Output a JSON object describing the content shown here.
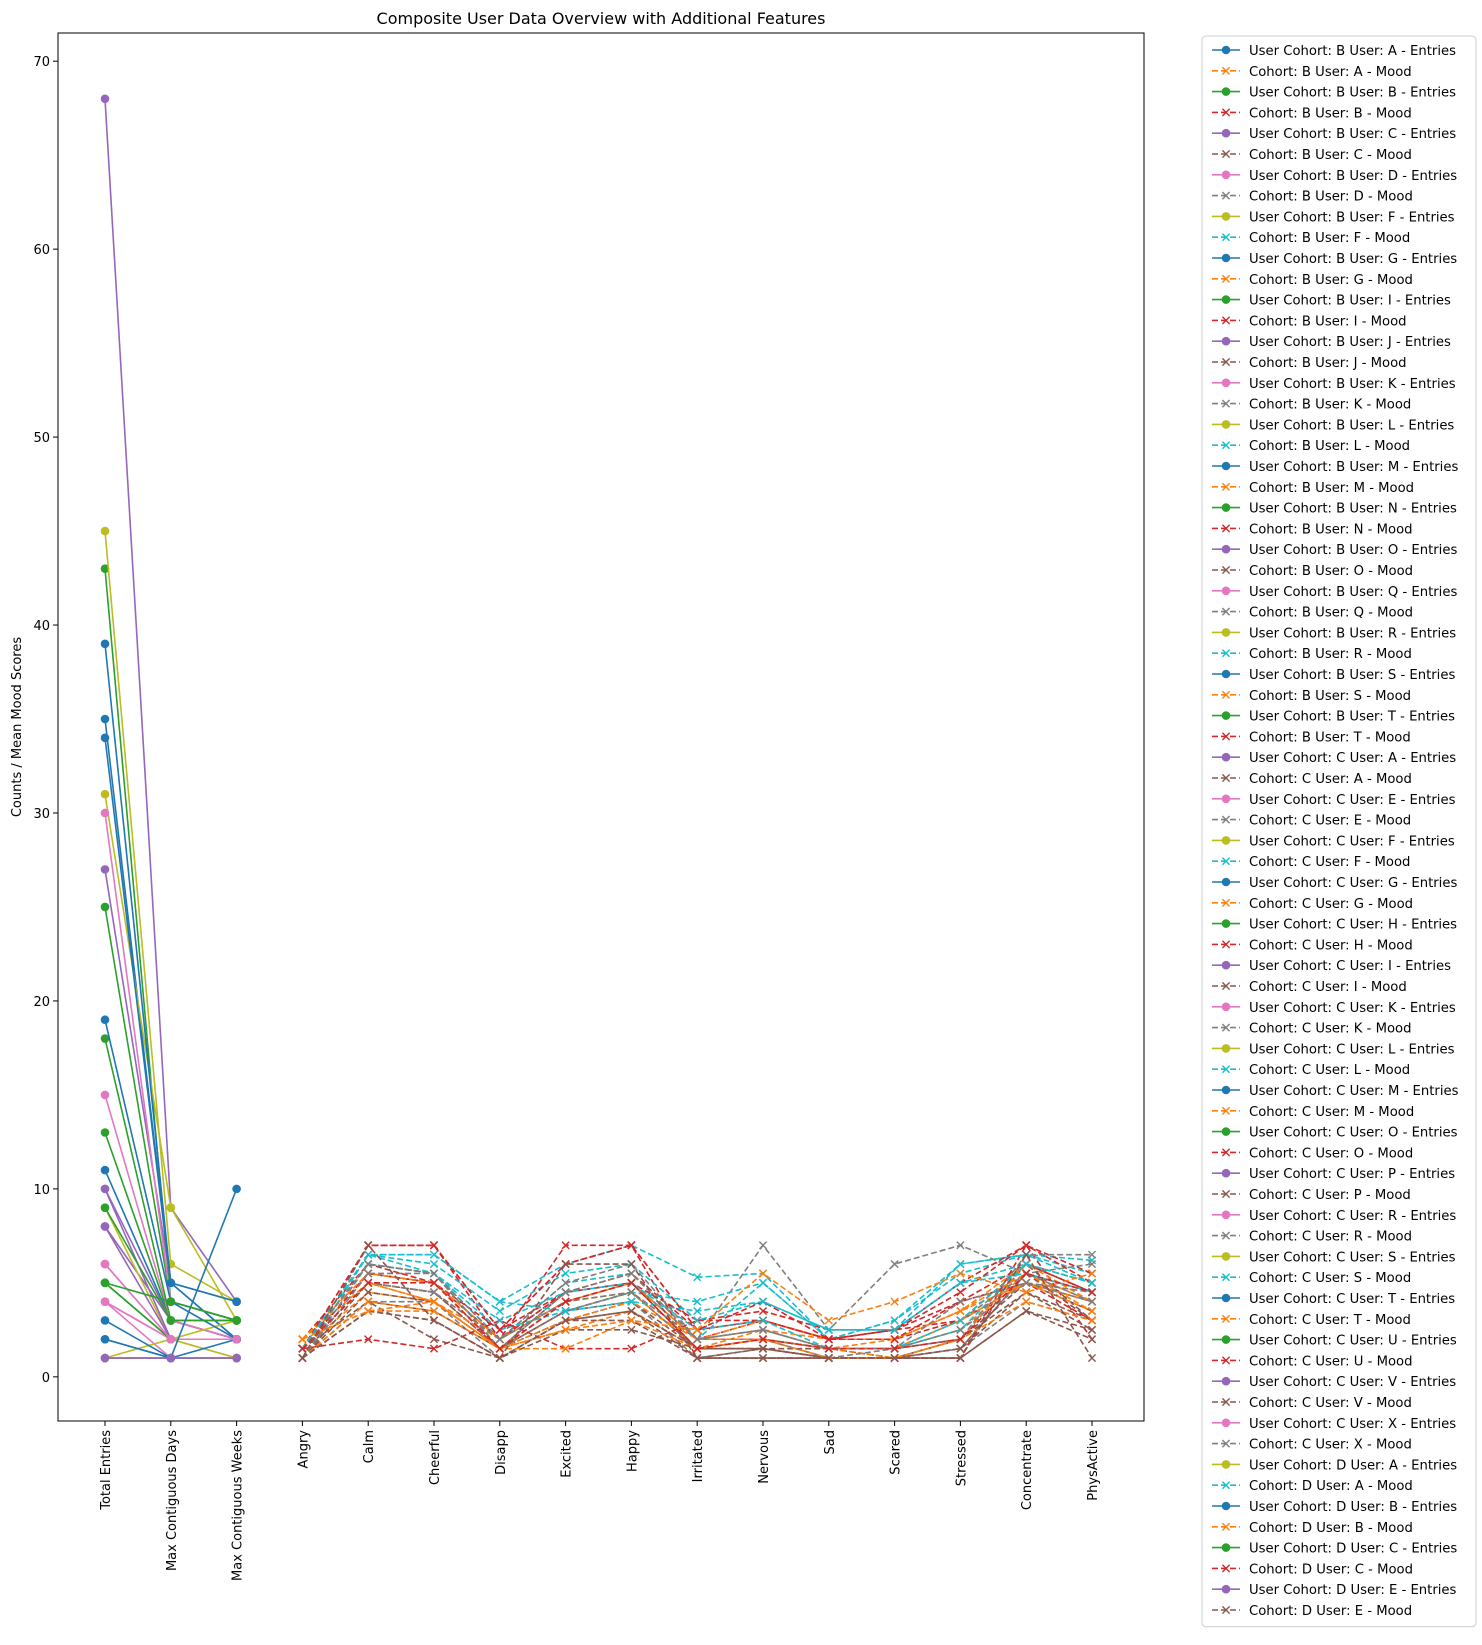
{
  "chart_data": {
    "type": "line",
    "title": "Composite User Data Overview with Additional Features",
    "ylabel": "Counts / Mean Mood Scores",
    "xlabel": "",
    "ylim": [
      -2.35,
      71.5
    ],
    "yticks": [
      0,
      10,
      20,
      30,
      40,
      50,
      60,
      70
    ],
    "grid": false,
    "legend_placement": "outside-right",
    "entry_categories": [
      "Total Entries",
      "Max Contiguous Days",
      "Max Contiguous Weeks"
    ],
    "mood_categories": [
      "Angry",
      "Calm",
      "Cheerful",
      "Disapp",
      "Excited",
      "Happy",
      "Irritated",
      "Nervous",
      "Sad",
      "Scared",
      "Stressed",
      "Concentrate",
      "PhysActive"
    ],
    "colors": [
      "#1f77b4",
      "#ff7f0e",
      "#2ca02c",
      "#d62728",
      "#9467bd",
      "#8c564b",
      "#e377c2",
      "#7f7f7f",
      "#bcbd22",
      "#17becf"
    ],
    "users": [
      {
        "entries_name": "User Cohort: B User: A - Entries",
        "mood_name": "Cohort: B User: A - Mood",
        "entries": [
          35,
          5,
          4
        ],
        "mood": [
          1.5,
          4.5,
          4.0,
          1.5,
          3.5,
          4.5,
          1.5,
          2.0,
          1.5,
          1.5,
          2.5,
          5.5,
          3.5
        ]
      },
      {
        "entries_name": "User Cohort: B User: B - Entries",
        "mood_name": "Cohort: B User: B - Mood",
        "entries": [
          43,
          4,
          3
        ],
        "mood": [
          2.0,
          6.0,
          5.0,
          1.5,
          4.0,
          5.0,
          2.0,
          3.0,
          2.0,
          2.5,
          3.0,
          5.0,
          4.0
        ]
      },
      {
        "entries_name": "User Cohort: B User: C - Entries",
        "mood_name": "Cohort: B User: C - Mood",
        "entries": [
          68,
          9,
          4
        ],
        "mood": [
          1.5,
          5.0,
          4.5,
          1.5,
          3.5,
          4.5,
          1.5,
          1.5,
          1.5,
          1.0,
          2.0,
          6.0,
          3.0
        ]
      },
      {
        "entries_name": "User Cohort: B User: D - Entries",
        "mood_name": "Cohort: B User: D - Mood",
        "entries": [
          4,
          2,
          2
        ],
        "mood": [
          1.0,
          5.5,
          5.0,
          2.0,
          4.5,
          5.0,
          2.0,
          2.0,
          1.0,
          1.0,
          1.5,
          5.5,
          4.5
        ]
      },
      {
        "entries_name": "User Cohort: B User: F - Entries",
        "mood_name": "Cohort: B User: F - Mood",
        "entries": [
          45,
          6,
          4
        ],
        "mood": [
          1.5,
          6.0,
          5.5,
          2.0,
          5.0,
          5.5,
          2.0,
          2.0,
          1.5,
          1.5,
          2.5,
          6.0,
          4.5
        ]
      },
      {
        "entries_name": "User Cohort: B User: G - Entries",
        "mood_name": "Cohort: B User: G - Mood",
        "entries": [
          11,
          3,
          2
        ],
        "mood": [
          1.0,
          3.5,
          3.5,
          1.5,
          2.5,
          3.5,
          1.5,
          2.5,
          2.0,
          2.0,
          3.5,
          5.5,
          4.0
        ]
      },
      {
        "entries_name": "User Cohort: B User: I - Entries",
        "mood_name": "Cohort: B User: I - Mood",
        "entries": [
          5,
          2,
          2
        ],
        "mood": [
          1.0,
          7.0,
          7.0,
          2.0,
          7.0,
          7.0,
          1.0,
          1.0,
          1.0,
          1.0,
          1.0,
          7.0,
          2.0
        ]
      },
      {
        "entries_name": "User Cohort: B User: J - Entries",
        "mood_name": "Cohort: B User: J - Mood",
        "entries": [
          27,
          5,
          2
        ],
        "mood": [
          1.0,
          5.0,
          4.5,
          1.5,
          4.5,
          5.0,
          1.5,
          1.5,
          1.0,
          1.0,
          1.5,
          5.5,
          3.0
        ]
      },
      {
        "entries_name": "User Cohort: B User: K - Entries",
        "mood_name": "Cohort: B User: K - Mood",
        "entries": [
          6,
          2,
          2
        ],
        "mood": [
          1.0,
          4.0,
          4.0,
          1.0,
          3.0,
          4.0,
          1.0,
          1.5,
          1.0,
          1.0,
          1.5,
          4.0,
          3.0
        ]
      },
      {
        "entries_name": "User Cohort: B User: L - Entries",
        "mood_name": "Cohort: B User: L - Mood",
        "entries": [
          31,
          9,
          3
        ],
        "mood": [
          1.5,
          6.0,
          5.5,
          2.0,
          4.0,
          5.0,
          2.0,
          5.0,
          2.0,
          2.5,
          6.0,
          6.5,
          5.0
        ]
      },
      {
        "entries_name": "User Cohort: B User: M - Entries",
        "mood_name": "Cohort: B User: M - Mood",
        "entries": [
          34,
          5,
          2
        ],
        "mood": [
          2.0,
          5.0,
          4.0,
          2.0,
          4.0,
          4.5,
          2.0,
          2.5,
          1.5,
          2.0,
          3.5,
          5.0,
          4.0
        ]
      },
      {
        "entries_name": "User Cohort: B User: N - Entries",
        "mood_name": "Cohort: B User: N - Mood",
        "entries": [
          25,
          4,
          3
        ],
        "mood": [
          1.5,
          5.5,
          5.0,
          2.5,
          4.5,
          5.0,
          3.0,
          3.5,
          2.5,
          2.5,
          4.0,
          6.0,
          4.5
        ]
      },
      {
        "entries_name": "User Cohort: B User: O - Entries",
        "mood_name": "Cohort: B User: O - Mood",
        "entries": [
          10,
          3,
          2
        ],
        "mood": [
          1.5,
          4.0,
          3.5,
          1.5,
          3.0,
          3.5,
          1.5,
          2.0,
          1.5,
          1.5,
          2.0,
          4.5,
          3.0
        ]
      },
      {
        "entries_name": "User Cohort: B User: Q - Entries",
        "mood_name": "Cohort: B User: Q - Mood",
        "entries": [
          30,
          4,
          2
        ],
        "mood": [
          1.5,
          5.0,
          4.5,
          2.0,
          4.0,
          5.0,
          2.0,
          2.5,
          1.5,
          1.5,
          3.0,
          5.5,
          4.0
        ]
      },
      {
        "entries_name": "User Cohort: B User: R - Entries",
        "mood_name": "Cohort: B User: R - Mood",
        "entries": [
          1,
          1,
          1
        ],
        "mood": [
          1.0,
          6.5,
          6.5,
          4.0,
          6.0,
          7.0,
          5.3,
          5.5,
          2.0,
          3.0,
          6.0,
          6.5,
          6.2
        ]
      },
      {
        "entries_name": "User Cohort: B User: S - Entries",
        "mood_name": "Cohort: B User: S - Mood",
        "entries": [
          2,
          1,
          1
        ],
        "mood": [
          2.0,
          5.5,
          5.0,
          1.5,
          4.0,
          5.0,
          1.5,
          2.0,
          1.5,
          1.0,
          2.0,
          6.0,
          5.0
        ]
      },
      {
        "entries_name": "User Cohort: B User: T - Entries",
        "mood_name": "Cohort: B User: T - Mood",
        "entries": [
          13,
          3,
          2
        ],
        "mood": [
          1.5,
          5.5,
          5.0,
          2.0,
          4.5,
          5.5,
          2.5,
          3.0,
          2.0,
          2.0,
          3.0,
          6.0,
          4.5
        ]
      },
      {
        "entries_name": "User Cohort: C User: A - Entries",
        "mood_name": "Cohort: C User: A - Mood",
        "entries": [
          8,
          3,
          2
        ],
        "mood": [
          1.0,
          4.5,
          4.0,
          1.5,
          3.5,
          4.0,
          1.5,
          1.5,
          1.0,
          1.0,
          2.0,
          5.0,
          3.5
        ]
      },
      {
        "entries_name": "User Cohort: C User: E - Entries",
        "mood_name": "Cohort: C User: E - Mood",
        "entries": [
          15,
          3,
          2
        ],
        "mood": [
          1.0,
          6.0,
          5.5,
          2.0,
          5.0,
          6.0,
          2.0,
          7.0,
          2.5,
          6.0,
          7.0,
          5.5,
          6.0
        ]
      },
      {
        "entries_name": "User Cohort: C User: F - Entries",
        "mood_name": "Cohort: C User: F - Mood",
        "entries": [
          9,
          2,
          3
        ],
        "mood": [
          1.5,
          6.5,
          5.5,
          2.5,
          3.5,
          4.5,
          4.0,
          5.0,
          2.0,
          3.0,
          5.5,
          6.5,
          5.5
        ]
      },
      {
        "entries_name": "User Cohort: C User: G - Entries",
        "mood_name": "Cohort: C User: G - Mood",
        "entries": [
          39,
          5,
          4
        ],
        "mood": [
          2.0,
          5.5,
          5.0,
          2.0,
          4.0,
          5.0,
          2.0,
          3.0,
          2.0,
          2.0,
          3.5,
          6.0,
          4.0
        ]
      },
      {
        "entries_name": "User Cohort: C User: H - Entries",
        "mood_name": "Cohort: C User: H - Mood",
        "entries": [
          18,
          3,
          3
        ],
        "mood": [
          1.5,
          2.0,
          1.5,
          3.0,
          1.5,
          1.5,
          3.0,
          3.0,
          2.0,
          2.0,
          4.0,
          5.0,
          3.0
        ]
      },
      {
        "entries_name": "User Cohort: C User: I - Entries",
        "mood_name": "Cohort: C User: I - Mood",
        "entries": [
          10,
          2,
          2
        ],
        "mood": [
          1.0,
          4.0,
          2.0,
          1.0,
          2.5,
          2.5,
          1.5,
          1.5,
          1.0,
          1.0,
          1.5,
          4.5,
          2.5
        ]
      },
      {
        "entries_name": "User Cohort: C User: K - Entries",
        "mood_name": "Cohort: C User: K - Mood",
        "entries": [
          4,
          2,
          1
        ],
        "mood": [
          1.5,
          5.0,
          4.5,
          2.0,
          4.0,
          4.5,
          2.0,
          2.0,
          1.5,
          1.5,
          2.5,
          5.0,
          4.0
        ]
      },
      {
        "entries_name": "User Cohort: C User: L - Entries",
        "mood_name": "Cohort: C User: L - Mood",
        "entries": [
          1,
          1,
          1
        ],
        "mood": [
          1.5,
          6.5,
          6.0,
          3.5,
          5.5,
          6.0,
          3.0,
          4.0,
          2.5,
          2.5,
          5.0,
          6.0,
          5.0
        ]
      },
      {
        "entries_name": "User Cohort: C User: M - Entries",
        "mood_name": "Cohort: C User: M - Mood",
        "entries": [
          19,
          4,
          2
        ],
        "mood": [
          1.5,
          5.0,
          4.0,
          1.5,
          3.0,
          4.0,
          2.0,
          2.0,
          1.5,
          1.5,
          3.0,
          5.0,
          3.5
        ]
      },
      {
        "entries_name": "User Cohort: C User: O - Entries",
        "mood_name": "Cohort: C User: O - Mood",
        "entries": [
          5,
          2,
          2
        ],
        "mood": [
          1.5,
          7.0,
          7.0,
          2.5,
          6.0,
          7.0,
          2.5,
          3.0,
          2.0,
          2.5,
          5.0,
          7.0,
          5.0
        ]
      },
      {
        "entries_name": "User Cohort: C User: P - Entries",
        "mood_name": "Cohort: C User: P - Mood",
        "entries": [
          8,
          2,
          2
        ],
        "mood": [
          1.0,
          3.5,
          3.0,
          1.0,
          3.0,
          3.5,
          1.0,
          1.0,
          1.0,
          1.0,
          1.0,
          3.5,
          2.5
        ]
      },
      {
        "entries_name": "User Cohort: C User: R - Entries",
        "mood_name": "Cohort: C User: R - Mood",
        "entries": [
          4,
          1,
          1
        ],
        "mood": [
          1.0,
          5.5,
          5.5,
          1.5,
          3.5,
          4.5,
          1.5,
          2.0,
          1.0,
          1.5,
          4.0,
          5.0,
          4.5
        ]
      },
      {
        "entries_name": "User Cohort: C User: S - Entries",
        "mood_name": "Cohort: C User: S - Mood",
        "entries": [
          1,
          2,
          1
        ],
        "mood": [
          1.5,
          6.0,
          5.5,
          3.0,
          4.5,
          5.0,
          2.5,
          3.0,
          1.5,
          1.5,
          3.0,
          6.0,
          5.0
        ]
      },
      {
        "entries_name": "User Cohort: C User: T - Entries",
        "mood_name": "Cohort: C User: T - Mood",
        "entries": [
          3,
          1,
          2
        ],
        "mood": [
          1.0,
          4.0,
          3.5,
          1.5,
          2.5,
          3.0,
          1.5,
          2.0,
          1.0,
          1.0,
          2.0,
          4.0,
          3.0
        ]
      },
      {
        "entries_name": "User Cohort: C User: U - Entries",
        "mood_name": "Cohort: C User: U - Mood",
        "entries": [
          9,
          3,
          3
        ],
        "mood": [
          1.5,
          7.0,
          7.0,
          2.5,
          6.0,
          7.0,
          2.5,
          4.0,
          2.0,
          2.5,
          4.5,
          7.0,
          5.5
        ]
      },
      {
        "entries_name": "User Cohort: C User: V - Entries",
        "mood_name": "Cohort: C User: V - Mood",
        "entries": [
          1,
          1,
          1
        ],
        "mood": [
          1.0,
          3.5,
          3.0,
          1.0,
          3.0,
          3.0,
          1.0,
          1.0,
          1.0,
          1.0,
          1.0,
          3.5,
          2.0
        ]
      },
      {
        "entries_name": "User Cohort: C User: X - Entries",
        "mood_name": "Cohort: C User: X - Mood",
        "entries": [
          6,
          2,
          2
        ],
        "mood": [
          1.5,
          6.0,
          5.5,
          1.5,
          4.5,
          5.5,
          2.0,
          2.5,
          1.5,
          1.5,
          2.0,
          6.5,
          6.5
        ]
      },
      {
        "entries_name": "User Cohort: D User: A - Entries",
        "mood_name": "Cohort: D User: A - Mood",
        "entries": [
          1,
          1,
          1
        ],
        "mood": [
          1.5,
          6.5,
          6.5,
          4.0,
          3.5,
          4.0,
          3.5,
          4.0,
          2.5,
          2.5,
          5.0,
          5.5,
          4.5
        ]
      },
      {
        "entries_name": "User Cohort: D User: B - Entries",
        "mood_name": "Cohort: D User: B - Mood",
        "entries": [
          2,
          1,
          10
        ],
        "mood": [
          2.0,
          3.5,
          4.0,
          1.5,
          1.5,
          3.0,
          2.5,
          5.5,
          3.0,
          4.0,
          5.5,
          4.5,
          5.5
        ]
      },
      {
        "entries_name": "User Cohort: D User: C - Entries",
        "mood_name": "Cohort: D User: C - Mood",
        "entries": [
          5,
          4,
          3
        ],
        "mood": [
          1.5,
          5.0,
          5.0,
          1.5,
          4.0,
          5.0,
          1.5,
          2.0,
          1.5,
          1.5,
          2.0,
          5.5,
          4.5
        ]
      },
      {
        "entries_name": "User Cohort: D User: E - Entries",
        "mood_name": "Cohort: D User: E - Mood",
        "entries": [
          1,
          1,
          1
        ],
        "mood": [
          1.0,
          7.0,
          3.0,
          1.0,
          6.0,
          6.0,
          1.0,
          1.5,
          1.0,
          1.0,
          1.0,
          6.5,
          1.0
        ]
      }
    ]
  }
}
